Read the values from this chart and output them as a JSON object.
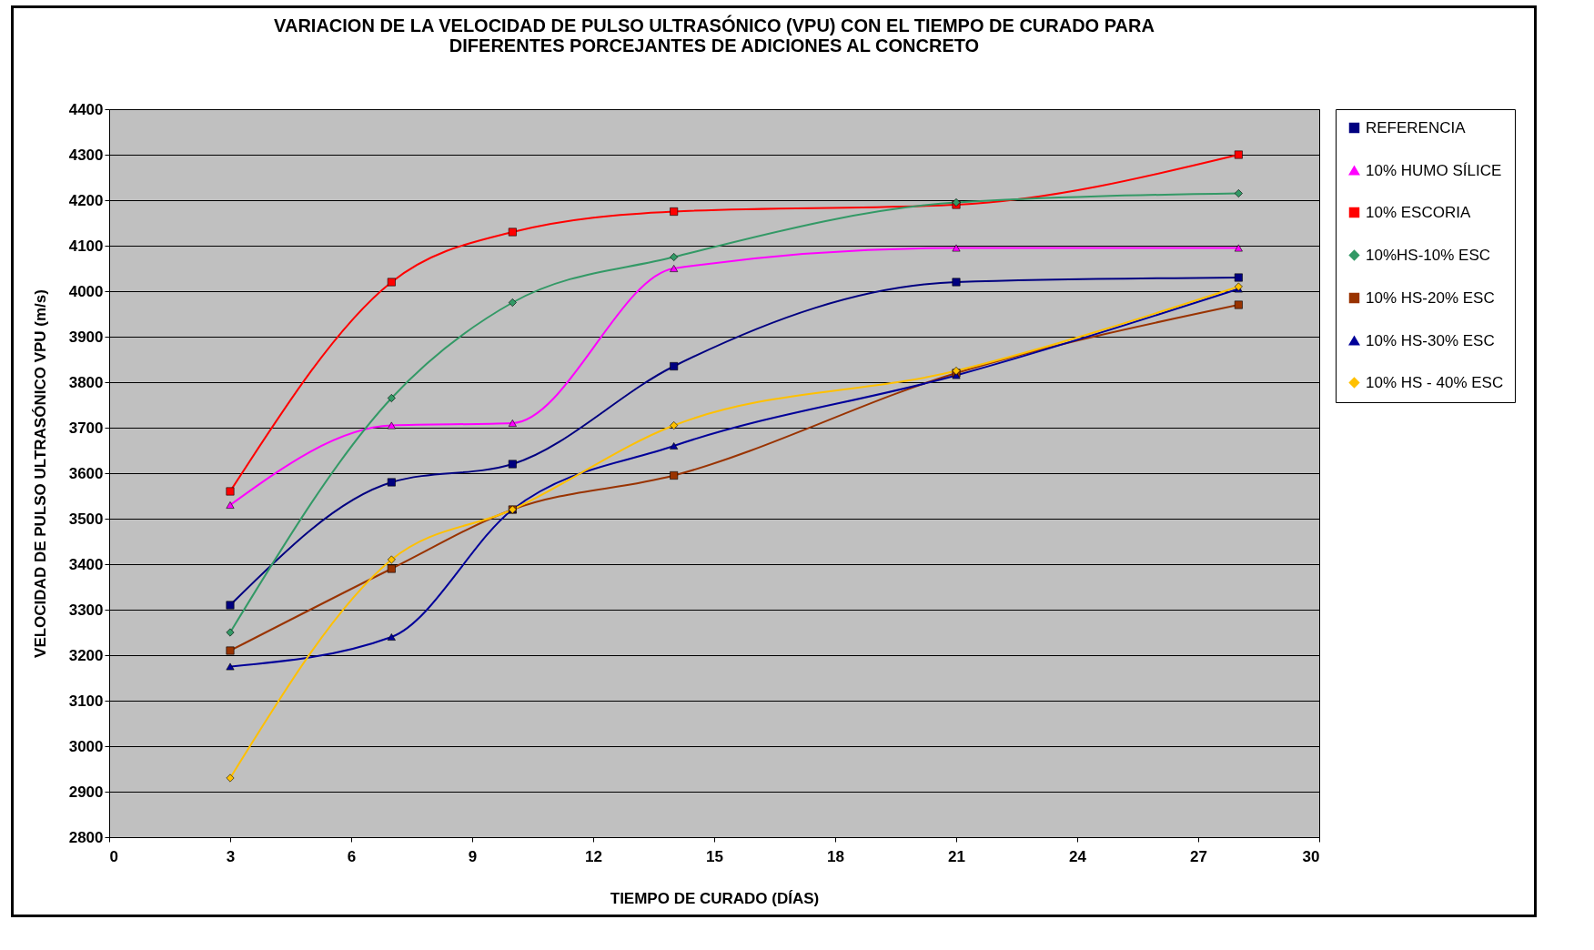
{
  "chart_data": {
    "type": "line",
    "title": "VARIACION DE LA VELOCIDAD DE PULSO ULTRASÓNICO (VPU) CON EL TIEMPO DE CURADO PARA\nDIFERENTES PORCEJANTES DE ADICIONES AL CONCRETO",
    "xlabel": "TIEMPO DE CURADO (DÍAS)",
    "ylabel": "VELOCIDAD DE PULSO ULTRASÓNICO VPU (m/s)",
    "x": [
      3,
      7,
      10,
      14,
      21,
      28
    ],
    "series": [
      {
        "name": "REFERENCIA",
        "color": "#000080",
        "marker": "square",
        "values": [
          3310,
          3580,
          3620,
          3835,
          4020,
          4030
        ]
      },
      {
        "name": "10% HUMO SÍLICE",
        "color": "#ff00ff",
        "marker": "triangle",
        "values": [
          3530,
          3705,
          3710,
          4050,
          4095,
          4095
        ]
      },
      {
        "name": "10% ESCORIA",
        "color": "#ff0000",
        "marker": "square",
        "values": [
          3560,
          4020,
          4130,
          4175,
          4190,
          4300
        ]
      },
      {
        "name": "10%HS-10% ESC",
        "color": "#339966",
        "marker": "diamond",
        "values": [
          3250,
          3765,
          3975,
          4075,
          4195,
          4215
        ]
      },
      {
        "name": "10% HS-20% ESC",
        "color": "#993300",
        "marker": "square",
        "values": [
          3210,
          3390,
          3520,
          3595,
          3820,
          3970
        ]
      },
      {
        "name": "10% HS-30% ESC",
        "color": "#000099",
        "marker": "triangle",
        "values": [
          3175,
          3240,
          3520,
          3660,
          3815,
          4005
        ]
      },
      {
        "name": "10% HS - 40% ESC",
        "color": "#ffc000",
        "marker": "diamond",
        "values": [
          2930,
          3410,
          3520,
          3705,
          3825,
          4010
        ]
      }
    ],
    "xlim": [
      0,
      30
    ],
    "xticks": [
      0,
      3,
      6,
      9,
      12,
      15,
      18,
      21,
      24,
      27,
      30
    ],
    "ylim": [
      2800,
      4400
    ],
    "yticks": [
      2800,
      2900,
      3000,
      3100,
      3200,
      3300,
      3400,
      3500,
      3600,
      3700,
      3800,
      3900,
      4000,
      4100,
      4200,
      4300,
      4400
    ],
    "grid": "y",
    "legend": "right",
    "line_style": "solid"
  }
}
